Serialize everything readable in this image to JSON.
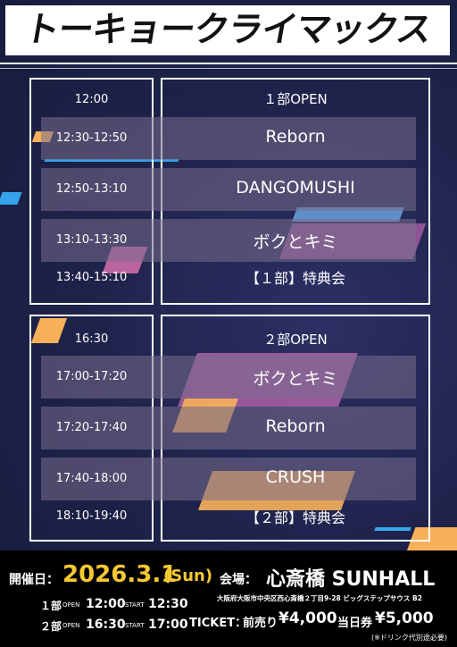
{
  "title": "トーキョークライマックス",
  "part1": {
    "times": [
      "12:00",
      "12:30-12:50",
      "12:50-13:10",
      "13:10-13:30",
      "13:40-15:10"
    ],
    "items": [
      "１部OPEN",
      "Reborn",
      "DANGOMUSHI",
      "ボクとキミ",
      "【１部】特典会"
    ]
  },
  "part2": {
    "times": [
      "16:30",
      "17:00-17:20",
      "17:20-17:40",
      "17:40-18:00",
      "18:10-19:40"
    ],
    "items": [
      "２部OPEN",
      "ボクとキミ",
      "Reborn",
      "CRUSH",
      "【２部】特典会"
    ]
  },
  "info": {
    "date_label": "開催日：",
    "date": "2026.3.1",
    "day": "(Sun)",
    "venue_label": "会場：",
    "venue": "心斎橋 SUNHALL",
    "address": "大阪府大阪市中央区西心斎橋２丁目9-28 ビッグステップサウス B2",
    "p1_label": "１部",
    "p1_open_label": "OPEN",
    "p1_open": "12:00",
    "p1_start_label": "START",
    "p1_start": "12:30",
    "p2_label": "２部",
    "p2_open_label": "OPEN",
    "p2_open": "16:30",
    "p2_start_label": "START",
    "p2_start": "17:00",
    "ticket_label": "TICKET：",
    "advance_label": "前売り",
    "advance_price": "¥4,000",
    "door_label": "当日券",
    "door_price": "¥5,000",
    "drink_note": "(※ドリンク代別途必要)"
  },
  "colors": {
    "accent_pink": "#f06fb0",
    "accent_orange": "#f8b15a",
    "accent_blue": "#3aa8e8",
    "background": "#1e2249"
  }
}
